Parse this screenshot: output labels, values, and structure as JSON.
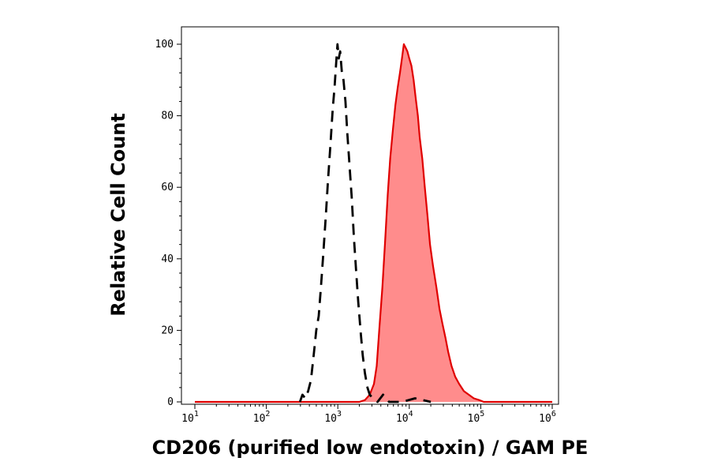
{
  "chart_data": {
    "type": "area",
    "title": "",
    "xlabel": "CD206 (purified low endotoxin) / GAM PE",
    "ylabel": "Relative Cell Count",
    "x_scale": "log",
    "xlim": [
      10,
      1000000
    ],
    "ylim": [
      0,
      100
    ],
    "x_ticks": [
      {
        "value": 10,
        "base": "10",
        "exp": "1"
      },
      {
        "value": 100,
        "base": "10",
        "exp": "2"
      },
      {
        "value": 1000,
        "base": "10",
        "exp": "3"
      },
      {
        "value": 10000,
        "base": "10",
        "exp": "4"
      },
      {
        "value": 100000,
        "base": "10",
        "exp": "5"
      },
      {
        "value": 1000000,
        "base": "10",
        "exp": "6"
      }
    ],
    "y_ticks": [
      {
        "value": 0,
        "label": "0"
      },
      {
        "value": 20,
        "label": "20"
      },
      {
        "value": 40,
        "label": "40"
      },
      {
        "value": 60,
        "label": "60"
      },
      {
        "value": 80,
        "label": "80"
      },
      {
        "value": 100,
        "label": "100"
      }
    ],
    "grid": false,
    "series": [
      {
        "style": "dashed-outline",
        "color": "#000000",
        "points": [
          [
            295,
            0
          ],
          [
            320,
            2
          ],
          [
            350,
            1
          ],
          [
            385,
            3
          ],
          [
            420,
            6
          ],
          [
            460,
            13
          ],
          [
            500,
            20
          ],
          [
            540,
            24
          ],
          [
            580,
            32
          ],
          [
            630,
            42
          ],
          [
            680,
            52
          ],
          [
            730,
            62
          ],
          [
            790,
            72
          ],
          [
            850,
            82
          ],
          [
            900,
            88
          ],
          [
            950,
            95
          ],
          [
            990,
            100
          ],
          [
            1030,
            96
          ],
          [
            1080,
            98
          ],
          [
            1140,
            92
          ],
          [
            1200,
            90
          ],
          [
            1280,
            84
          ],
          [
            1360,
            75
          ],
          [
            1460,
            66
          ],
          [
            1570,
            57
          ],
          [
            1680,
            46
          ],
          [
            1800,
            37
          ],
          [
            1930,
            28
          ],
          [
            2080,
            20
          ],
          [
            2230,
            13
          ],
          [
            2400,
            8
          ],
          [
            2600,
            4
          ],
          [
            2800,
            2
          ],
          [
            3100,
            1
          ],
          [
            3600,
            0
          ],
          [
            4300,
            2
          ],
          [
            5200,
            0
          ],
          [
            8000,
            0
          ],
          [
            12000,
            1
          ],
          [
            20000,
            0
          ]
        ]
      },
      {
        "style": "filled",
        "color": "#e00000",
        "fill": "#ff8c8c",
        "points": [
          [
            10,
            0
          ],
          [
            2000,
            0
          ],
          [
            2400,
            0.5
          ],
          [
            2800,
            2
          ],
          [
            3200,
            5
          ],
          [
            3500,
            10
          ],
          [
            3800,
            20
          ],
          [
            4200,
            32
          ],
          [
            4600,
            45
          ],
          [
            5000,
            58
          ],
          [
            5400,
            68
          ],
          [
            5900,
            76
          ],
          [
            6400,
            83
          ],
          [
            6900,
            88
          ],
          [
            7400,
            92
          ],
          [
            7900,
            96
          ],
          [
            8400,
            100
          ],
          [
            8900,
            99
          ],
          [
            9400,
            98
          ],
          [
            10000,
            96
          ],
          [
            10700,
            94
          ],
          [
            11500,
            90
          ],
          [
            12300,
            85
          ],
          [
            13200,
            80
          ],
          [
            14000,
            74
          ],
          [
            15200,
            68
          ],
          [
            16500,
            60
          ],
          [
            18000,
            52
          ],
          [
            19500,
            44
          ],
          [
            21500,
            38
          ],
          [
            24000,
            32
          ],
          [
            26500,
            26
          ],
          [
            29000,
            22
          ],
          [
            32000,
            18
          ],
          [
            35000,
            14
          ],
          [
            39000,
            10
          ],
          [
            44000,
            7
          ],
          [
            50000,
            5
          ],
          [
            58000,
            3
          ],
          [
            68000,
            2
          ],
          [
            80000,
            1
          ],
          [
            95000,
            0.5
          ],
          [
            110000,
            0
          ],
          [
            1000000,
            0
          ]
        ]
      }
    ]
  }
}
